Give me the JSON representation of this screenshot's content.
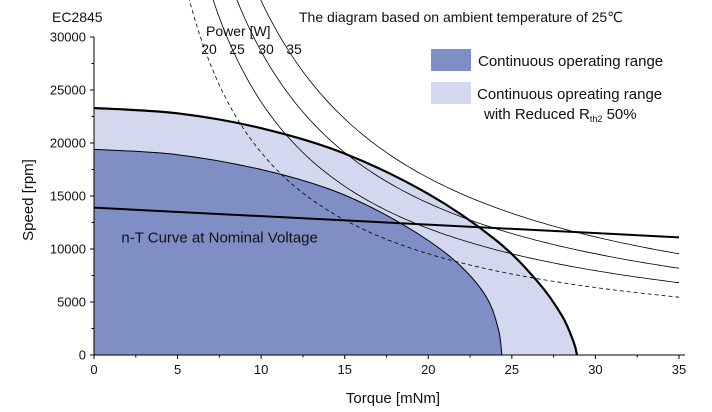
{
  "chart_data": {
    "type": "area",
    "model": "EC2845",
    "title": "The diagram based on ambient temperature of 25℃",
    "xlabel": "Torque [mNm]",
    "ylabel": "Speed [rpm]",
    "xlim": [
      0,
      35
    ],
    "ylim": [
      0,
      30000
    ],
    "xticks": [
      0,
      5,
      10,
      15,
      20,
      25,
      30,
      35
    ],
    "yticks": [
      0,
      5000,
      10000,
      15000,
      20000,
      25000,
      30000
    ],
    "grid": false,
    "legend_position": "top-right",
    "legend": [
      {
        "label": "Continuous operating range",
        "color": "#7f8fc6"
      },
      {
        "label_main": "Continuous opreating range",
        "label_sub_prefix": "with Reduced R",
        "label_sub_subscript": "th2",
        "label_sub_suffix": " 50%",
        "color": "#d3d8ee"
      }
    ],
    "series": [
      {
        "name": "Continuous operating range",
        "color": "#7f8fc6",
        "points": [
          [
            0,
            19400
          ],
          [
            5,
            18900
          ],
          [
            10,
            17500
          ],
          [
            14,
            15700
          ],
          [
            17,
            13600
          ],
          [
            20,
            10800
          ],
          [
            22,
            8300
          ],
          [
            23.5,
            5400
          ],
          [
            24.2,
            2400
          ],
          [
            24.4,
            0
          ]
        ]
      },
      {
        "name": "Continuous opreating range with Reduced Rth2 50%",
        "color": "#d3d8ee",
        "points": [
          [
            0,
            23300
          ],
          [
            5,
            22800
          ],
          [
            10,
            21400
          ],
          [
            15,
            19000
          ],
          [
            20,
            15200
          ],
          [
            24,
            10900
          ],
          [
            26.5,
            7000
          ],
          [
            28,
            3700
          ],
          [
            28.7,
            1200
          ],
          [
            28.9,
            0
          ]
        ]
      },
      {
        "name": "n-T Curve at Nominal Voltage",
        "color": "#111111",
        "points": [
          [
            0,
            13900
          ],
          [
            35,
            11100
          ]
        ]
      }
    ],
    "power_curves": {
      "label": "Power [W]",
      "watts": [
        20,
        25,
        30,
        35
      ],
      "tick_labels": [
        "20",
        "25",
        "30",
        "35"
      ]
    },
    "annotations": [
      {
        "text": "n-T Curve at Nominal Voltage",
        "x": 0.8,
        "y": 11000
      }
    ]
  }
}
